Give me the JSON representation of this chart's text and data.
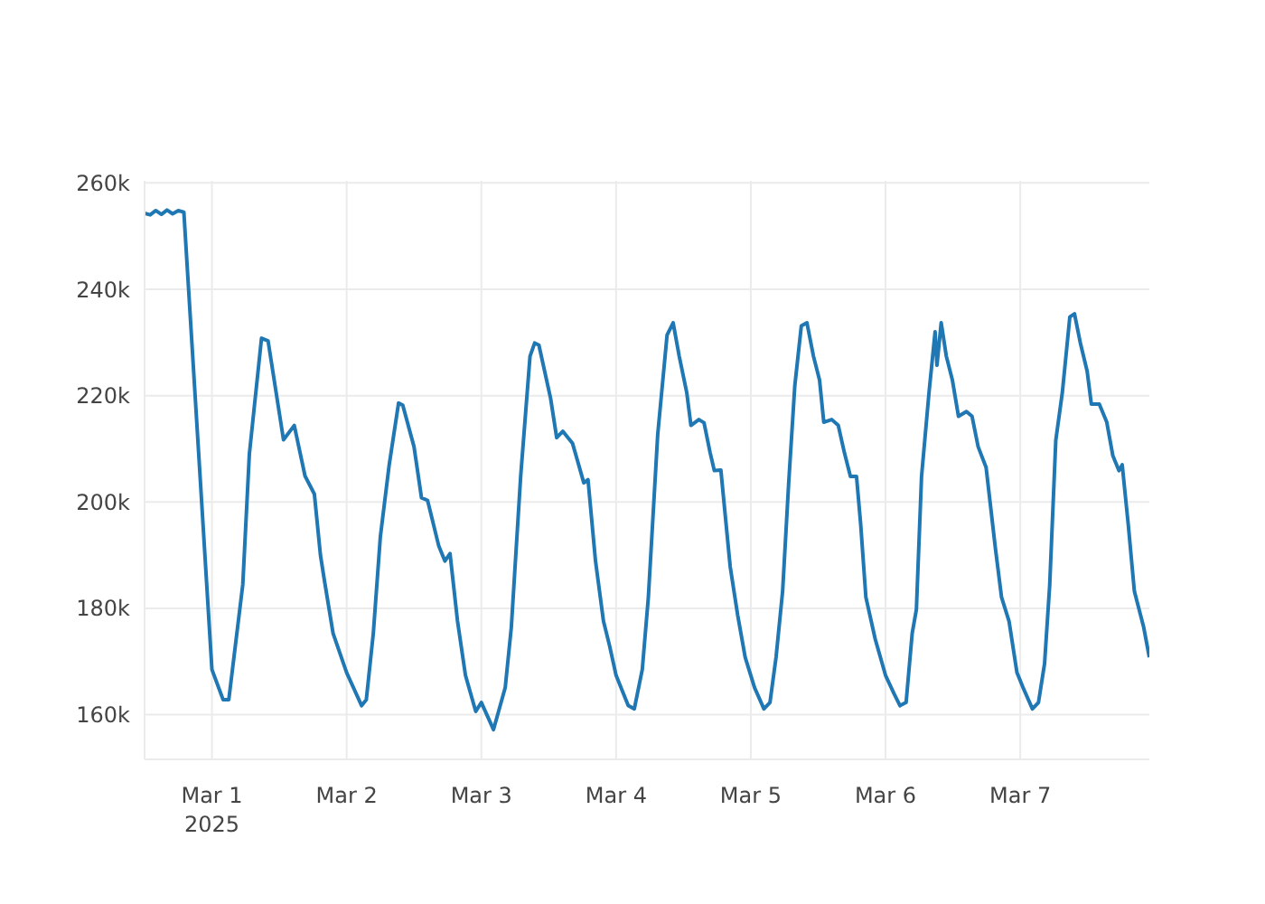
{
  "chart_data": {
    "type": "line",
    "x": [
      "2025-02-28T12:00",
      "2025-02-28T13:00",
      "2025-02-28T14:00",
      "2025-02-28T15:00",
      "2025-02-28T16:00",
      "2025-02-28T17:00",
      "2025-02-28T18:00",
      "2025-02-28T19:00",
      "2025-03-01T00:00",
      "2025-03-01T02:00",
      "2025-03-01T03:00",
      "2025-03-01T05:30",
      "2025-03-01T06:40",
      "2025-03-01T08:50",
      "2025-03-01T10:00",
      "2025-03-01T12:45",
      "2025-03-01T14:40",
      "2025-03-01T16:35",
      "2025-03-01T18:15",
      "2025-03-01T19:20",
      "2025-03-01T20:00",
      "2025-03-01T21:35",
      "2025-03-02T00:00",
      "2025-03-02T02:40",
      "2025-03-02T03:30",
      "2025-03-02T04:45",
      "2025-03-02T06:00",
      "2025-03-02T07:35",
      "2025-03-02T09:15",
      "2025-03-02T10:00",
      "2025-03-02T12:00",
      "2025-03-02T13:20",
      "2025-03-02T14:25",
      "2025-03-02T16:25",
      "2025-03-02T17:30",
      "2025-03-02T18:25",
      "2025-03-02T19:45",
      "2025-03-02T21:10",
      "2025-03-02T23:00",
      "2025-03-03T00:00",
      "2025-03-03T02:10",
      "2025-03-03T04:15",
      "2025-03-03T05:20",
      "2025-03-03T07:00",
      "2025-03-03T08:40",
      "2025-03-03T09:30",
      "2025-03-03T10:15",
      "2025-03-03T12:20",
      "2025-03-03T13:25",
      "2025-03-03T14:30",
      "2025-03-03T16:15",
      "2025-03-03T17:20",
      "2025-03-03T18:15",
      "2025-03-03T19:00",
      "2025-03-03T20:20",
      "2025-03-03T21:45",
      "2025-03-03T22:50",
      "2025-03-04T00:00",
      "2025-03-04T02:10",
      "2025-03-04T03:15",
      "2025-03-04T04:40",
      "2025-03-04T05:45",
      "2025-03-04T07:25",
      "2025-03-04T09:05",
      "2025-03-04T10:10",
      "2025-03-04T11:15",
      "2025-03-04T12:35",
      "2025-03-04T13:20",
      "2025-03-04T14:45",
      "2025-03-04T15:40",
      "2025-03-04T16:45",
      "2025-03-04T17:30",
      "2025-03-04T18:40",
      "2025-03-04T20:20",
      "2025-03-04T21:40",
      "2025-03-04T23:00",
      "2025-03-05T00:40",
      "2025-03-05T02:20",
      "2025-03-05T03:25",
      "2025-03-05T04:30",
      "2025-03-05T05:40",
      "2025-03-05T06:45",
      "2025-03-05T07:50",
      "2025-03-05T09:00",
      "2025-03-05T10:00",
      "2025-03-05T11:10",
      "2025-03-05T12:15",
      "2025-03-05T13:00",
      "2025-03-05T14:25",
      "2025-03-05T15:35",
      "2025-03-05T16:40",
      "2025-03-05T17:45",
      "2025-03-05T18:50",
      "2025-03-05T19:35",
      "2025-03-05T20:30",
      "2025-03-05T22:10",
      "2025-03-06T00:00",
      "2025-03-06T01:30",
      "2025-03-06T02:35",
      "2025-03-06T03:40",
      "2025-03-06T04:45",
      "2025-03-06T05:30",
      "2025-03-06T06:25",
      "2025-03-06T07:45",
      "2025-03-06T08:50",
      "2025-03-06T09:10",
      "2025-03-06T09:55",
      "2025-03-06T10:50",
      "2025-03-06T11:55",
      "2025-03-06T13:00",
      "2025-03-06T14:25",
      "2025-03-06T15:25",
      "2025-03-06T16:30",
      "2025-03-06T17:55",
      "2025-03-06T19:35",
      "2025-03-06T20:40",
      "2025-03-06T22:00",
      "2025-03-06T23:25",
      "2025-03-07T00:30",
      "2025-03-07T02:10",
      "2025-03-07T03:15",
      "2025-03-07T04:20",
      "2025-03-07T05:15",
      "2025-03-07T06:20",
      "2025-03-07T07:30",
      "2025-03-07T08:50",
      "2025-03-07T09:40",
      "2025-03-07T10:45",
      "2025-03-07T11:55",
      "2025-03-07T12:40",
      "2025-03-07T14:05",
      "2025-03-07T15:25",
      "2025-03-07T16:30",
      "2025-03-07T17:35",
      "2025-03-07T18:10",
      "2025-03-07T19:15",
      "2025-03-07T20:20",
      "2025-03-07T22:00",
      "2025-03-07T23:00"
    ],
    "series": [
      {
        "color": "#1f77b4",
        "values": [
          254300,
          254000,
          254800,
          254100,
          254900,
          254200,
          254800,
          254500,
          168500,
          162800,
          162800,
          184500,
          209000,
          230800,
          230300,
          211700,
          214400,
          204900,
          201500,
          190000,
          185500,
          175300,
          167900,
          161700,
          162800,
          175300,
          193400,
          207000,
          218600,
          218200,
          210400,
          200800,
          200300,
          191700,
          188900,
          190300,
          177600,
          167400,
          160600,
          162300,
          157200,
          165100,
          176400,
          204800,
          227400,
          229900,
          229500,
          219500,
          212100,
          213300,
          211000,
          207000,
          203600,
          204200,
          188900,
          177600,
          173000,
          167400,
          161700,
          161100,
          168500,
          182100,
          212700,
          231400,
          233700,
          227400,
          220600,
          214400,
          215500,
          214900,
          209300,
          205900,
          206000,
          187800,
          178700,
          170800,
          165100,
          161100,
          162300,
          170800,
          183200,
          203600,
          221800,
          233100,
          233700,
          227400,
          222900,
          215000,
          215500,
          214400,
          209300,
          204800,
          204800,
          195700,
          182100,
          174200,
          167400,
          164000,
          161700,
          162300,
          175300,
          179800,
          204800,
          220600,
          232000,
          225700,
          233700,
          227400,
          222900,
          216100,
          217000,
          216100,
          210400,
          206500,
          191200,
          182100,
          177600,
          167900,
          165100,
          161100,
          162300,
          169600,
          184400,
          211600,
          220600,
          234800,
          235400,
          229700,
          224600,
          218400,
          218400,
          215000,
          208700,
          205900,
          207000,
          195700,
          183200,
          176400,
          170800
        ]
      }
    ],
    "xlim": [
      "2025-02-28T12:00",
      "2025-03-07T23:00"
    ],
    "xticks": [
      {
        "value": "2025-03-01",
        "label": "Mar 1\n2025"
      },
      {
        "value": "2025-03-02",
        "label": "Mar 2"
      },
      {
        "value": "2025-03-03",
        "label": "Mar 3"
      },
      {
        "value": "2025-03-04",
        "label": "Mar 4"
      },
      {
        "value": "2025-03-05",
        "label": "Mar 5"
      },
      {
        "value": "2025-03-06",
        "label": "Mar 6"
      },
      {
        "value": "2025-03-07",
        "label": "Mar 7"
      }
    ],
    "ylim": [
      151600,
      260400
    ],
    "yticks": [
      {
        "value": 160000,
        "label": "160k"
      },
      {
        "value": 180000,
        "label": "180k"
      },
      {
        "value": 200000,
        "label": "200k"
      },
      {
        "value": 220000,
        "label": "220k"
      },
      {
        "value": 240000,
        "label": "240k"
      },
      {
        "value": 260000,
        "label": "260k"
      }
    ],
    "grid": true,
    "marker": "none",
    "line_style": "solid",
    "legend": false
  }
}
